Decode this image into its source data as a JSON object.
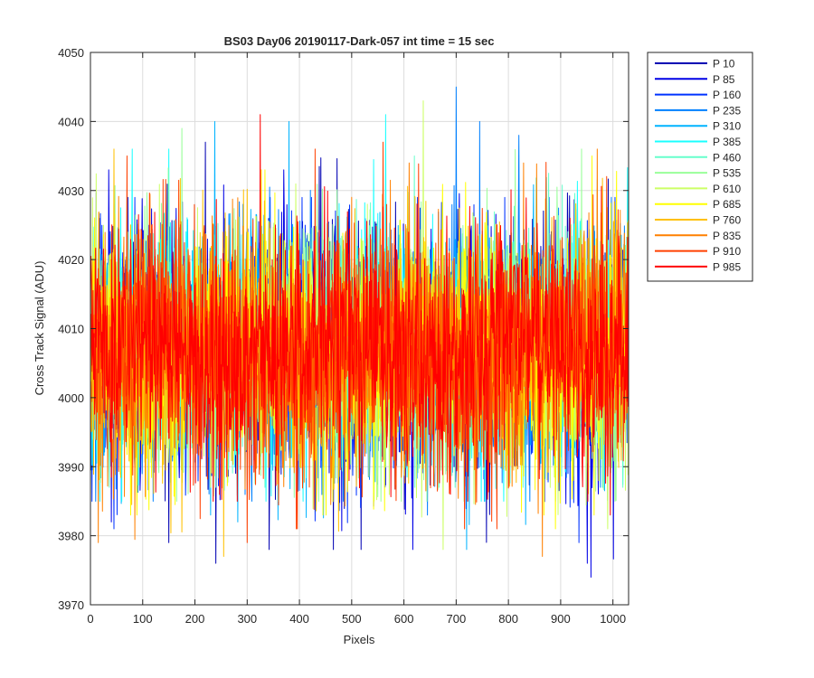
{
  "chart_data": {
    "type": "line",
    "title": "BS03 Day06 20190117-Dark-057 int time = 15 sec",
    "xlabel": "Pixels",
    "ylabel": "Cross Track Signal (ADU)",
    "xlim": [
      0,
      1030
    ],
    "ylim": [
      3970,
      4050
    ],
    "xticks": [
      0,
      100,
      200,
      300,
      400,
      500,
      600,
      700,
      800,
      900,
      1000
    ],
    "yticks": [
      3970,
      3980,
      3990,
      4000,
      4010,
      4020,
      4030,
      4040,
      4050
    ],
    "grid": true,
    "legend_position": "outside-top-right",
    "n_points_per_series": 1030,
    "series": [
      {
        "name": "P 10",
        "color": "#0000b3",
        "mean": 4007,
        "min": 3976,
        "max": 4037,
        "peaks": [
          [
            240,
            3976
          ],
          [
            220,
            4037
          ],
          [
            150,
            3979
          ],
          [
            465,
            3978
          ]
        ]
      },
      {
        "name": "P 85",
        "color": "#0000e6",
        "mean": 4007,
        "min": 3974,
        "max": 4033,
        "peaks": [
          [
            958,
            3974
          ],
          [
            40,
            3982
          ],
          [
            35,
            4033
          ],
          [
            370,
            4033
          ]
        ]
      },
      {
        "name": "P 160",
        "color": "#0033ff",
        "mean": 4007,
        "min": 3979,
        "max": 4031,
        "peaks": [
          [
            935,
            3979
          ],
          [
            700,
            4031
          ]
        ]
      },
      {
        "name": "P 235",
        "color": "#0080ff",
        "mean": 4007,
        "min": 3983,
        "max": 4045,
        "peaks": [
          [
            700,
            4045
          ],
          [
            745,
            4040
          ],
          [
            820,
            4038
          ],
          [
            645,
            3983
          ]
        ]
      },
      {
        "name": "P 310",
        "color": "#00b3ff",
        "mean": 4007,
        "min": 3978,
        "max": 4040,
        "peaks": [
          [
            238,
            4040
          ],
          [
            380,
            4040
          ],
          [
            720,
            3978
          ],
          [
            230,
            3983
          ]
        ]
      },
      {
        "name": "P 385",
        "color": "#1affff",
        "mean": 4007,
        "min": 3983,
        "max": 4041,
        "peaks": [
          [
            565,
            4041
          ],
          [
            150,
            4036
          ],
          [
            80,
            4036
          ]
        ]
      },
      {
        "name": "P 460",
        "color": "#66ffcc",
        "mean": 4007,
        "min": 3985,
        "max": 4035,
        "peaks": [
          [
            620,
            4035
          ]
        ]
      },
      {
        "name": "P 535",
        "color": "#99ff99",
        "mean": 4007,
        "min": 3983,
        "max": 4039,
        "peaks": [
          [
            175,
            4039
          ],
          [
            940,
            4036
          ]
        ]
      },
      {
        "name": "P 610",
        "color": "#ccff66",
        "mean": 4007,
        "min": 3978,
        "max": 4043,
        "peaks": [
          [
            637,
            4043
          ],
          [
            675,
            3978
          ],
          [
            990,
            3981
          ]
        ]
      },
      {
        "name": "P 685",
        "color": "#ffff00",
        "mean": 4007,
        "min": 3981,
        "max": 4035,
        "peaks": [
          [
            960,
            4035
          ],
          [
            890,
            3981
          ]
        ]
      },
      {
        "name": "P 760",
        "color": "#ffc000",
        "mean": 4007,
        "min": 3977,
        "max": 4036,
        "peaks": [
          [
            255,
            3977
          ],
          [
            45,
            4036
          ]
        ]
      },
      {
        "name": "P 835",
        "color": "#ff8000",
        "mean": 4007,
        "min": 3977,
        "max": 4036,
        "peaks": [
          [
            865,
            3977
          ],
          [
            970,
            4036
          ],
          [
            610,
            4034
          ]
        ]
      },
      {
        "name": "P 910",
        "color": "#ff4000",
        "mean": 4007,
        "min": 3979,
        "max": 4037,
        "peaks": [
          [
            300,
            3979
          ],
          [
            560,
            4037
          ],
          [
            430,
            4036
          ]
        ]
      },
      {
        "name": "P 985",
        "color": "#ff0000",
        "mean": 4007,
        "min": 3983,
        "max": 4041,
        "peaks": [
          [
            325,
            4041
          ],
          [
            995,
            3983
          ]
        ]
      }
    ]
  }
}
